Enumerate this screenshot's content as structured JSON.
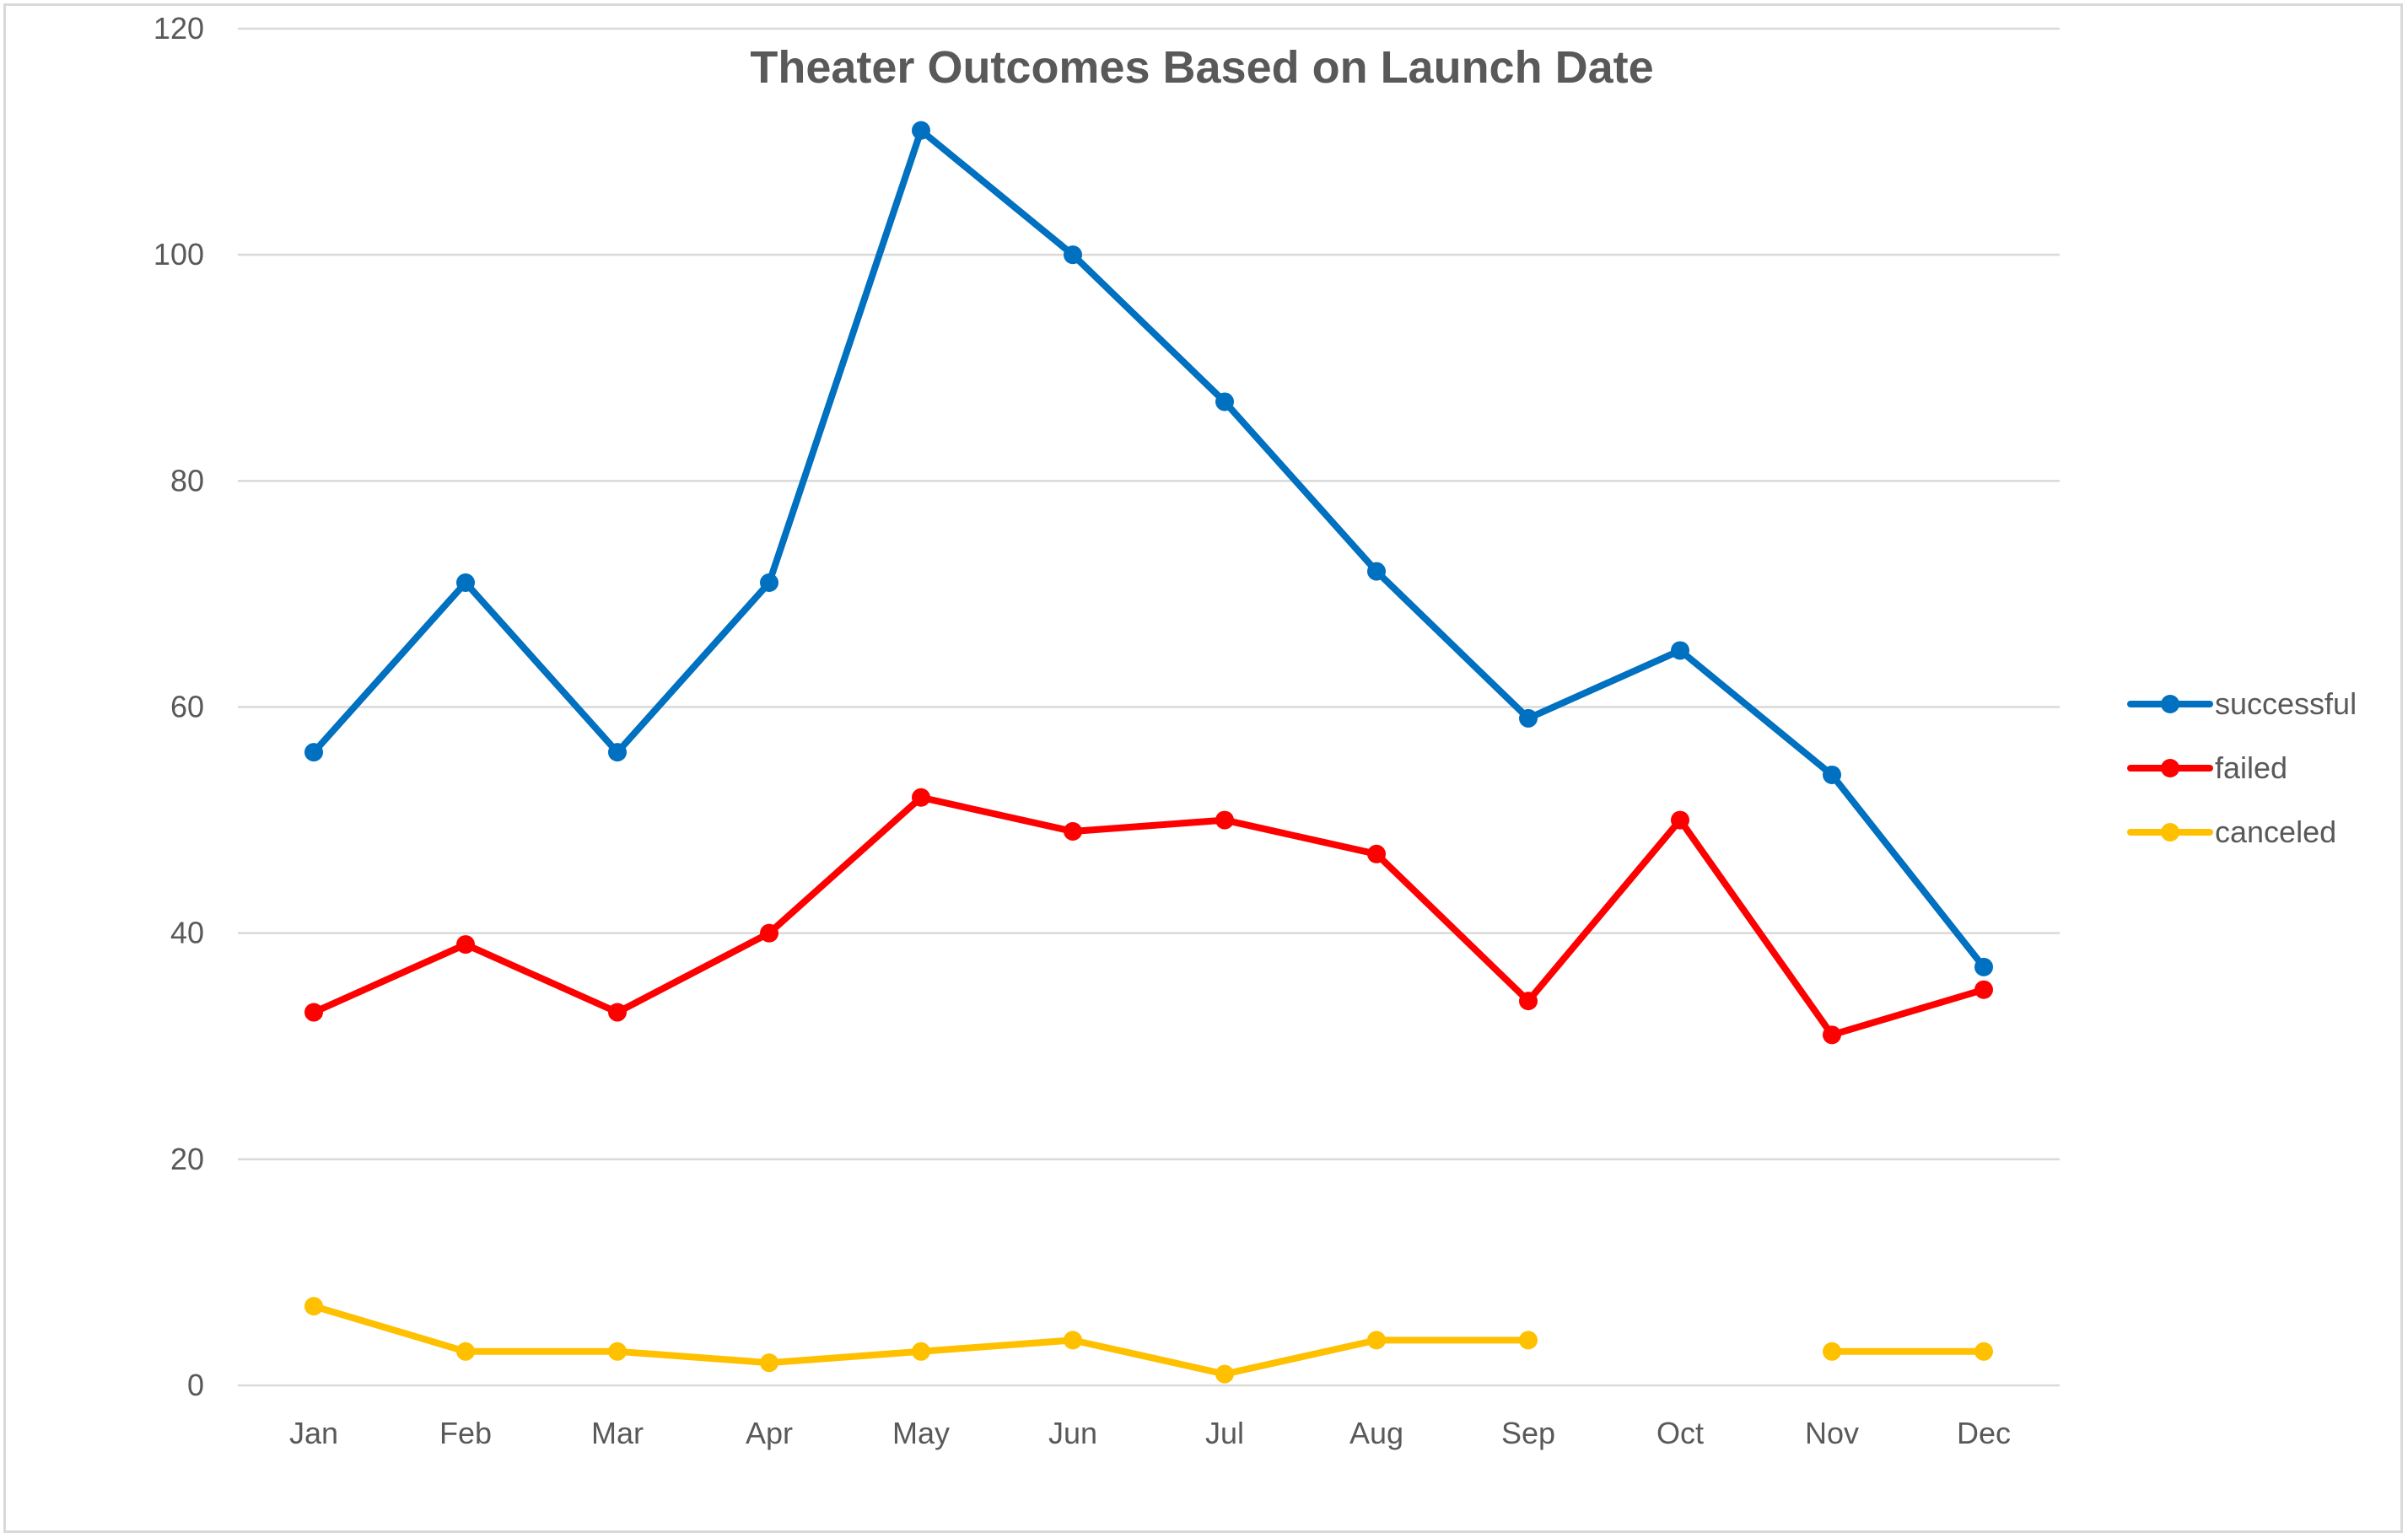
{
  "chart_data": {
    "type": "line",
    "title": "Theater Outcomes Based on Launch Date",
    "xlabel": "",
    "ylabel": "",
    "categories": [
      "Jan",
      "Feb",
      "Mar",
      "Apr",
      "May",
      "Jun",
      "Jul",
      "Aug",
      "Sep",
      "Oct",
      "Nov",
      "Dec"
    ],
    "ylim": [
      0,
      120
    ],
    "yticks": [
      0,
      20,
      40,
      60,
      80,
      100,
      120
    ],
    "grid": "horizontal",
    "legend_position": "right",
    "series": [
      {
        "name": "successful",
        "color": "#0070c0",
        "values": [
          56,
          71,
          56,
          71,
          111,
          100,
          87,
          72,
          59,
          65,
          54,
          37
        ]
      },
      {
        "name": "failed",
        "color": "#ff0000",
        "values": [
          33,
          39,
          33,
          40,
          52,
          49,
          50,
          47,
          34,
          50,
          31,
          35
        ]
      },
      {
        "name": "canceled",
        "color": "#ffc000",
        "values": [
          7,
          3,
          3,
          2,
          3,
          4,
          1,
          4,
          4,
          null,
          3,
          3
        ]
      }
    ]
  }
}
